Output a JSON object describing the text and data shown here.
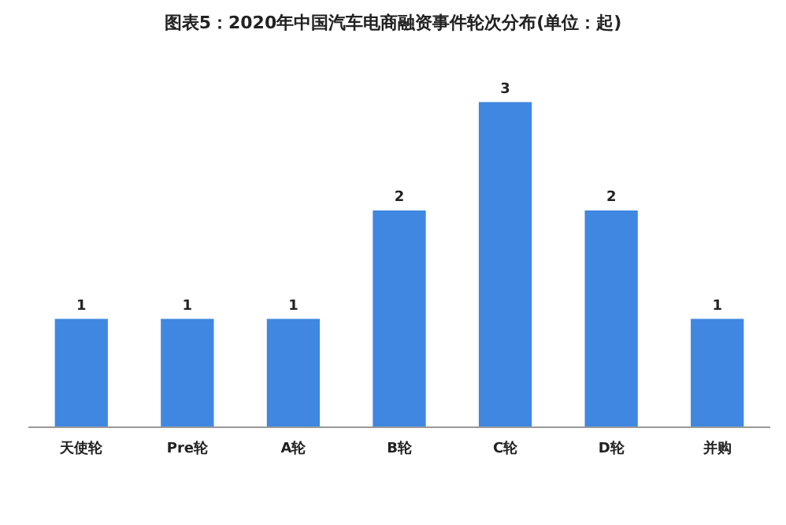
{
  "chart_data": {
    "type": "bar",
    "title": "图表5：2020年中国汽车电商融资事件轮次分布(单位：起)",
    "categories": [
      "天使轮",
      "Pre轮",
      "A轮",
      "B轮",
      "C轮",
      "D轮",
      "并购"
    ],
    "values": [
      1,
      1,
      1,
      2,
      3,
      2,
      1
    ],
    "color": "#3f87e1",
    "data_labels": true
  }
}
